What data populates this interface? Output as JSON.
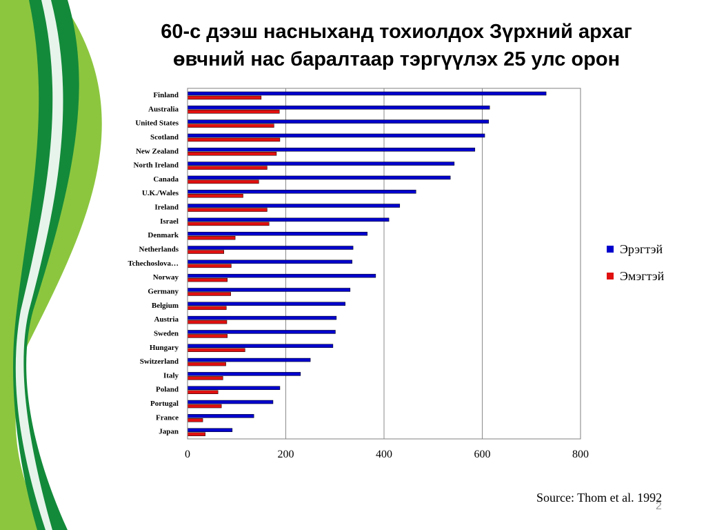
{
  "slide": {
    "title_line1": "60-с дээш насныханд тохиолдох Зүрхний архаг",
    "title_line2": "өвчний нас баралтаар тэргүүлэх 25 улс орон",
    "source": "Source: Thom et al. 1992",
    "page_number": "2",
    "colors": {
      "green_dark": "#138a3a",
      "green_light": "#8cc63f"
    }
  },
  "chart_data": {
    "type": "bar",
    "orientation": "horizontal",
    "title": "",
    "xlabel": "",
    "ylabel": "",
    "categories": [
      "Finland",
      "Australia",
      "United States",
      "Scotland",
      "New Zealand",
      "North Ireland",
      "Canada",
      "U.K./Wales",
      "Ireland",
      "Israel",
      "Denmark",
      "Netherlands",
      "Tchechoslova…",
      "Norway",
      "Germany",
      "Belgium",
      "Austria",
      "Sweden",
      "Hungary",
      "Switzerland",
      "Italy",
      "Poland",
      "Portugal",
      "France",
      "Japan"
    ],
    "series": [
      {
        "name": "Эрэгтэй",
        "color": "#0000cc",
        "values": [
          730,
          615,
          613,
          605,
          585,
          543,
          535,
          465,
          432,
          410,
          366,
          337,
          335,
          383,
          331,
          321,
          303,
          301,
          296,
          250,
          230,
          188,
          174,
          135,
          91
        ]
      },
      {
        "name": "Эмэгтэй",
        "color": "#e01010",
        "values": [
          150,
          187,
          176,
          188,
          181,
          162,
          145,
          113,
          162,
          166,
          97,
          74,
          89,
          81,
          88,
          79,
          80,
          81,
          117,
          78,
          72,
          62,
          69,
          31,
          36
        ]
      }
    ],
    "xlim": [
      0,
      800
    ],
    "xticks": [
      0,
      200,
      400,
      600,
      800
    ],
    "tick_labels": [
      "0",
      "200",
      "400",
      "600",
      "800"
    ],
    "grid": "vertical",
    "legend": "right"
  }
}
